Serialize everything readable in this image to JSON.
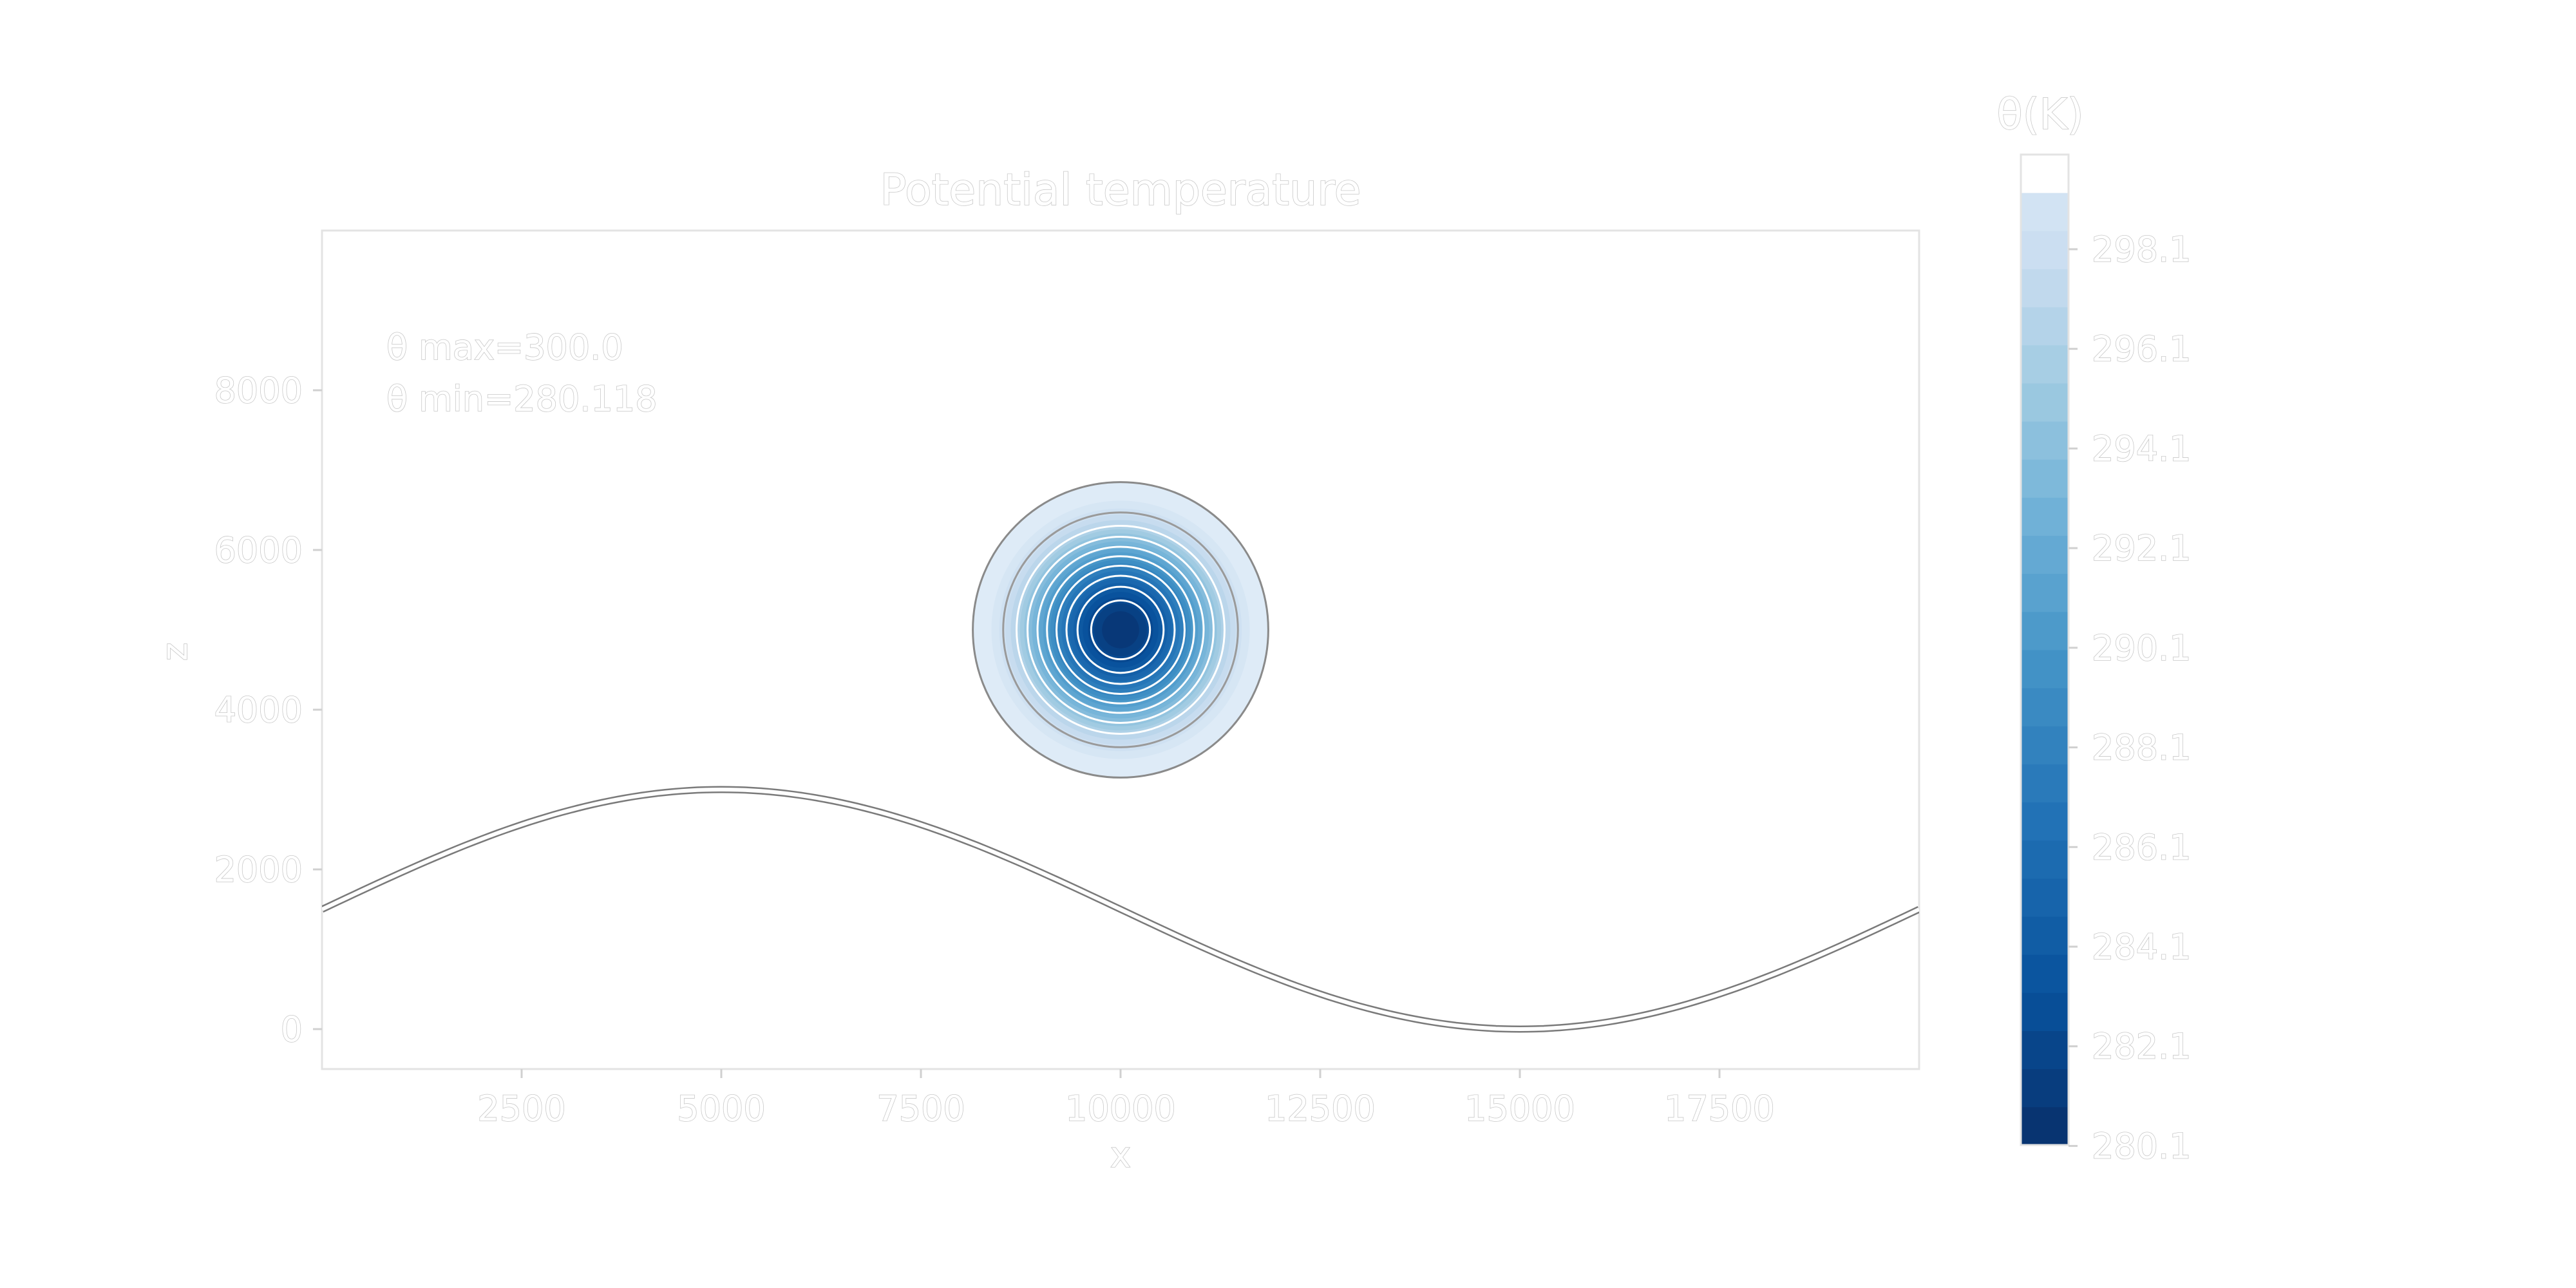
{
  "chart_data": {
    "type": "contour",
    "title": "Potential temperature",
    "xlabel": "x",
    "ylabel": "z",
    "xlim": [
      0,
      20000
    ],
    "ylim": [
      -500,
      10000
    ],
    "xticks": [
      2500,
      5000,
      7500,
      10000,
      12500,
      15000,
      17500
    ],
    "yticks": [
      0,
      2000,
      4000,
      6000,
      8000
    ],
    "xtick_labels": [
      "2500",
      "5000",
      "7500",
      "10000",
      "12500",
      "15000",
      "17500"
    ],
    "ytick_labels": [
      "0",
      "2000",
      "4000",
      "6000",
      "8000"
    ],
    "annotations": [
      "θ max=300.0",
      "θ min=280.118"
    ],
    "bubble": {
      "center_x": 10000,
      "center_z": 5000,
      "radius": 1850,
      "theta_min": 280.118,
      "theta_background": 300.0
    },
    "terrain": {
      "shape": "sine",
      "amplitude": 1500,
      "mean_height": 1500,
      "peak_x": 5000,
      "trough_x": 15000,
      "period": 20000
    },
    "colorbar": {
      "label": "θ(K)",
      "range": [
        280.118,
        300.0
      ],
      "ticks": [
        280.1,
        282.1,
        284.1,
        286.1,
        288.1,
        290.1,
        292.1,
        294.1,
        296.1,
        298.1
      ],
      "tick_labels": [
        "280.1",
        "282.1",
        "284.1",
        "286.1",
        "288.1",
        "290.1",
        "292.1",
        "294.1",
        "296.1",
        "298.1"
      ],
      "colormap": "Blues_r",
      "color_dark": "#08306b",
      "color_light": "#f7fbff"
    }
  }
}
